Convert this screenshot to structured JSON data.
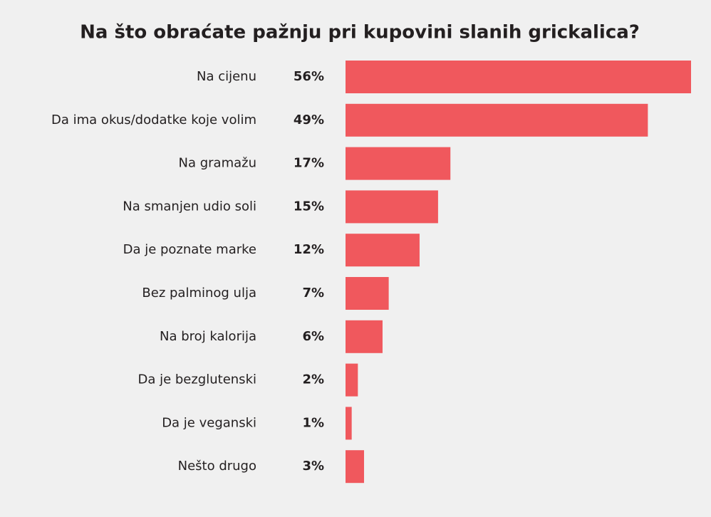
{
  "chart_data": {
    "type": "bar",
    "orientation": "horizontal",
    "title": "Na što obraćate pažnju pri kupovini slanih grickalica?",
    "categories": [
      "Na cijenu",
      "Da ima okus/dodatke koje volim",
      "Na gramažu",
      "Na smanjen udio soli",
      "Da je poznate marke",
      "Bez palminog ulja",
      "Na broj kalorija",
      "Da je bezglutenski",
      "Da je veganski",
      "Nešto drugo"
    ],
    "values": [
      56,
      49,
      17,
      15,
      12,
      7,
      6,
      2,
      1,
      3
    ],
    "value_labels": [
      "56%",
      "49%",
      "17%",
      "15%",
      "12%",
      "7%",
      "6%",
      "2%",
      "1%",
      "3%"
    ],
    "color": "#f0585d"
  }
}
